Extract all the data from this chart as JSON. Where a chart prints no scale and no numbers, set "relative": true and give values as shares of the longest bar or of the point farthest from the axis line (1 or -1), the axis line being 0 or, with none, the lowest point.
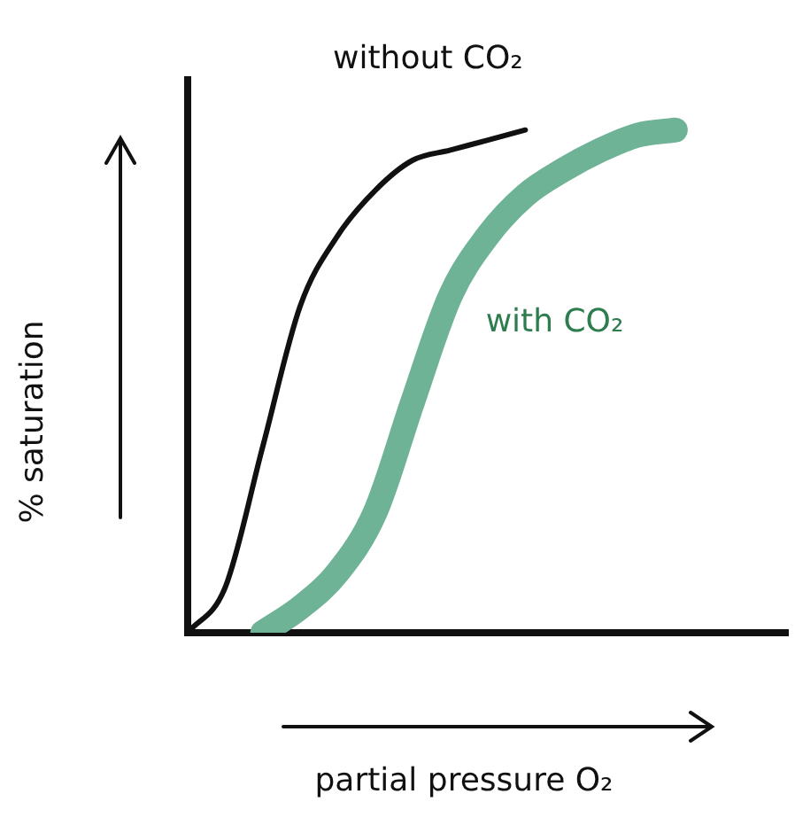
{
  "chart_data": {
    "type": "line",
    "relative": true,
    "xlabel": "partial pressure O₂",
    "ylabel": "% saturation",
    "categories": [
      null,
      null,
      null,
      null,
      null,
      null,
      null,
      null,
      null,
      null,
      null,
      null,
      null,
      null,
      null,
      null,
      null
    ],
    "series": [
      {
        "name": "without CO₂",
        "color": "#111111",
        "values": [
          0,
          0.09,
          0.37,
          0.65,
          0.79,
          0.88,
          0.94,
          0.96,
          0.98,
          1.0,
          null,
          null,
          null,
          null,
          null,
          null,
          null
        ]
      },
      {
        "name": "with CO₂",
        "color": "#6fb397",
        "values": [
          null,
          null,
          0.0,
          0.05,
          0.12,
          0.24,
          0.46,
          0.67,
          0.79,
          0.87,
          0.92,
          0.96,
          0.99,
          1.0,
          null,
          null,
          null
        ]
      }
    ],
    "grid": false,
    "legend": false,
    "marker": "none",
    "line_style": "solid"
  }
}
